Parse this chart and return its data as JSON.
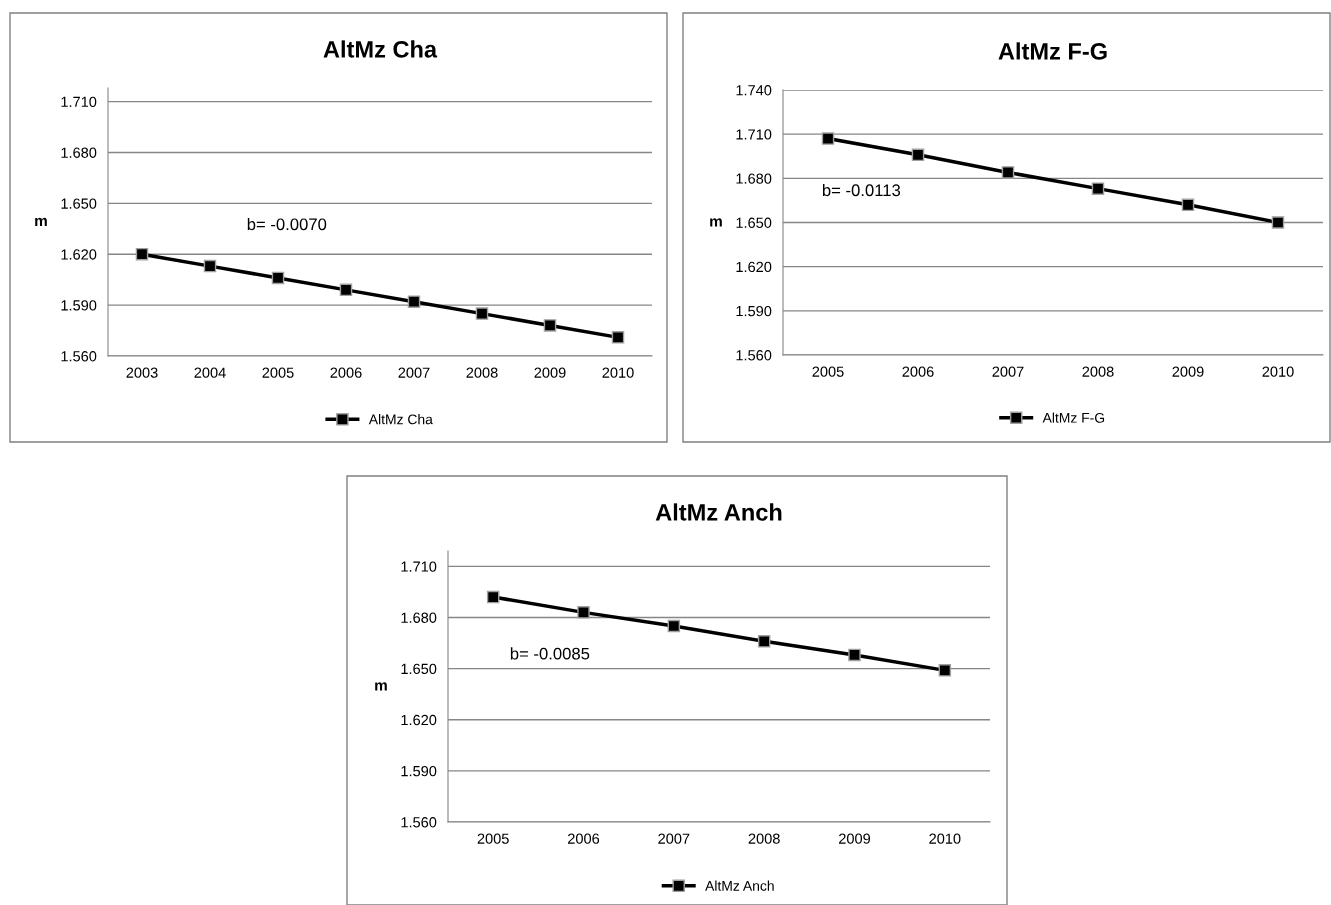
{
  "chart_data": [
    {
      "type": "line",
      "title": "AltMz Cha",
      "ylabel": "m",
      "categories": [
        "2003",
        "2004",
        "2005",
        "2006",
        "2007",
        "2008",
        "2009",
        "2010"
      ],
      "series": [
        {
          "name": "AltMz Cha",
          "color": "#000000",
          "values": [
            1.62,
            1.613,
            1.606,
            1.599,
            1.592,
            1.585,
            1.578,
            1.571
          ]
        }
      ],
      "ylim": [
        1.56,
        1.718
      ],
      "yticks": [
        {
          "value": 1.56,
          "label": "1.560"
        },
        {
          "value": 1.59,
          "label": "1.590"
        },
        {
          "value": 1.62,
          "label": "1.620"
        },
        {
          "value": 1.65,
          "label": "1.650"
        },
        {
          "value": 1.68,
          "label": "1.680"
        },
        {
          "value": 1.71,
          "label": "1.710"
        }
      ],
      "annotations": [
        "b= -0.0070"
      ],
      "grid": "y",
      "legend": "bottom",
      "marker": "square",
      "line_style": "solid"
    },
    {
      "type": "line",
      "title": "AltMz F-G",
      "ylabel": "m",
      "categories": [
        "2005",
        "2006",
        "2007",
        "2008",
        "2009",
        "2010"
      ],
      "series": [
        {
          "name": "AltMz F-G",
          "color": "#000000",
          "values": [
            1.707,
            1.696,
            1.684,
            1.673,
            1.662,
            1.65
          ]
        }
      ],
      "ylim": [
        1.56,
        1.74
      ],
      "yticks": [
        {
          "value": 1.56,
          "label": "1.560"
        },
        {
          "value": 1.59,
          "label": "1.590"
        },
        {
          "value": 1.62,
          "label": "1.620"
        },
        {
          "value": 1.65,
          "label": "1.650"
        },
        {
          "value": 1.68,
          "label": "1.680"
        },
        {
          "value": 1.71,
          "label": "1.710"
        },
        {
          "value": 1.74,
          "label": "1.740"
        }
      ],
      "annotations": [
        "b= -0.0113"
      ],
      "grid": "y",
      "legend": "bottom",
      "marker": "square",
      "line_style": "solid"
    },
    {
      "type": "line",
      "title": "AltMz Anch",
      "ylabel": "m",
      "categories": [
        "2005",
        "2006",
        "2007",
        "2008",
        "2009",
        "2010"
      ],
      "series": [
        {
          "name": "AltMz Anch",
          "color": "#000000",
          "values": [
            1.692,
            1.683,
            1.675,
            1.666,
            1.658,
            1.649
          ]
        }
      ],
      "ylim": [
        1.56,
        1.719
      ],
      "yticks": [
        {
          "value": 1.56,
          "label": "1.560"
        },
        {
          "value": 1.59,
          "label": "1.590"
        },
        {
          "value": 1.62,
          "label": "1.620"
        },
        {
          "value": 1.65,
          "label": "1.650"
        },
        {
          "value": 1.68,
          "label": "1.680"
        },
        {
          "value": 1.71,
          "label": "1.710"
        }
      ],
      "annotations": [
        "b= -0.0085"
      ],
      "grid": "y",
      "legend": "bottom",
      "marker": "square",
      "line_style": "solid"
    }
  ]
}
